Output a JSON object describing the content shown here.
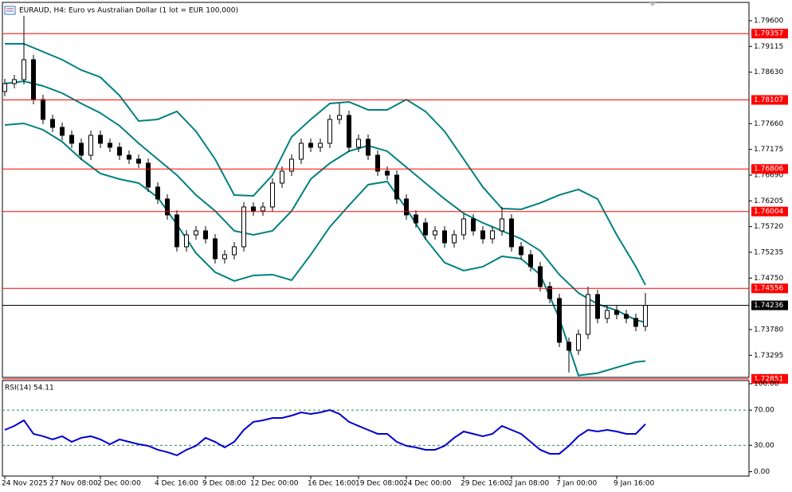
{
  "chart_data": [
    {
      "type": "candlestick",
      "title": "EURAUD, H4:  Euro vs Australian Dollar (1 lot = EUR 100,000)",
      "categories": [
        "24 Nov 2025",
        null,
        null,
        null,
        null,
        "27 Nov 08:00",
        null,
        null,
        null,
        null,
        "2 Dec 00:00",
        null,
        null,
        null,
        null,
        null,
        "4 Dec 16:00",
        null,
        null,
        null,
        null,
        "9 Dec 08:00",
        null,
        null,
        null,
        null,
        "12 Dec 00:00",
        null,
        null,
        null,
        null,
        null,
        "16 Dec 16:00",
        null,
        null,
        null,
        null,
        "19 Dec 08:00",
        null,
        null,
        null,
        null,
        "24 Dec 00:00",
        null,
        null,
        null,
        null,
        null,
        "29 Dec 16:00",
        null,
        null,
        null,
        null,
        "2 Jan 08:00",
        null,
        null,
        null,
        null,
        "7 Jan 00:00",
        null,
        null,
        null,
        null,
        null,
        "9 Jan 16:00",
        null,
        null,
        null
      ],
      "open": [
        1.78265,
        1.78415,
        1.7849,
        1.78865,
        1.78115,
        1.7774,
        1.7759,
        1.7744,
        1.7729,
        1.77065,
        1.7744,
        1.7729,
        1.77215,
        1.77065,
        1.7699,
        1.76915,
        1.76465,
        1.7624,
        1.7594,
        1.7534,
        1.75565,
        1.7564,
        1.7549,
        1.75115,
        1.7519,
        1.7534,
        1.7609,
        1.76015,
        1.7609,
        1.7654,
        1.76765,
        1.7699,
        1.7729,
        1.77215,
        1.7729,
        1.7774,
        1.77815,
        1.77215,
        1.77365,
        1.77065,
        1.76765,
        1.7669,
        1.7624,
        1.7594,
        1.7579,
        1.75565,
        1.7564,
        1.75415,
        1.75565,
        1.75865,
        1.7564,
        1.7549,
        1.7564,
        1.75865,
        1.7534,
        1.7519,
        1.74965,
        1.7459,
        1.74365,
        1.7354,
        1.7339,
        1.7369,
        1.7444,
        1.7399,
        1.7414,
        1.74065,
        1.7399,
        1.7384
      ],
      "high": [
        1.78505,
        1.7858,
        1.7969,
        1.78955,
        1.78205,
        1.7783,
        1.7768,
        1.7753,
        1.7738,
        1.7753,
        1.7753,
        1.7738,
        1.77305,
        1.77155,
        1.7708,
        1.77005,
        1.76555,
        1.7633,
        1.7603,
        1.75655,
        1.7573,
        1.7573,
        1.7558,
        1.7528,
        1.7543,
        1.7618,
        1.7618,
        1.7618,
        1.7663,
        1.76855,
        1.7708,
        1.7738,
        1.7738,
        1.7738,
        1.7783,
        1.7804,
        1.77905,
        1.77455,
        1.77455,
        1.77155,
        1.76855,
        1.7678,
        1.7633,
        1.7603,
        1.7588,
        1.7573,
        1.7573,
        1.75655,
        1.75955,
        1.75955,
        1.7573,
        1.7573,
        1.7609,
        1.75955,
        1.7543,
        1.7528,
        1.75055,
        1.7468,
        1.74455,
        1.7363,
        1.7378,
        1.7459,
        1.7453,
        1.7423,
        1.7423,
        1.74155,
        1.7408,
        1.7447
      ],
      "low": [
        1.78175,
        1.78325,
        1.784,
        1.78025,
        1.7765,
        1.775,
        1.7735,
        1.772,
        1.76975,
        1.76975,
        1.772,
        1.77125,
        1.76975,
        1.769,
        1.76825,
        1.76375,
        1.7615,
        1.7585,
        1.7525,
        1.7525,
        1.75475,
        1.754,
        1.75025,
        1.75025,
        1.751,
        1.7525,
        1.75925,
        1.75925,
        1.76,
        1.7645,
        1.76675,
        1.769,
        1.77125,
        1.77125,
        1.772,
        1.7765,
        1.77125,
        1.77125,
        1.76975,
        1.76675,
        1.766,
        1.7615,
        1.7585,
        1.757,
        1.75475,
        1.75475,
        1.75325,
        1.75325,
        1.75475,
        1.7555,
        1.754,
        1.754,
        1.7555,
        1.7525,
        1.751,
        1.74875,
        1.745,
        1.74275,
        1.7345,
        1.7297,
        1.733,
        1.736,
        1.739,
        1.739,
        1.73975,
        1.739,
        1.7375,
        1.7375
      ],
      "close": [
        1.78415,
        1.7849,
        1.78865,
        1.78115,
        1.7774,
        1.7759,
        1.7744,
        1.7729,
        1.77065,
        1.7744,
        1.7729,
        1.77215,
        1.77065,
        1.7699,
        1.76915,
        1.76465,
        1.7624,
        1.7594,
        1.7534,
        1.75565,
        1.7564,
        1.7549,
        1.75115,
        1.7519,
        1.7534,
        1.7609,
        1.76015,
        1.7609,
        1.7654,
        1.76765,
        1.7699,
        1.7729,
        1.77215,
        1.7729,
        1.7774,
        1.77815,
        1.77215,
        1.77365,
        1.77065,
        1.76765,
        1.7669,
        1.7624,
        1.7594,
        1.7579,
        1.75565,
        1.7564,
        1.75415,
        1.75565,
        1.75865,
        1.7564,
        1.7549,
        1.7564,
        1.75865,
        1.7534,
        1.7519,
        1.74965,
        1.7459,
        1.74365,
        1.7354,
        1.7339,
        1.7369,
        1.7444,
        1.7399,
        1.7414,
        1.74065,
        1.7399,
        1.7384,
        1.74236
      ],
      "candle_color": "#000000",
      "bull_fill": "#ffffff",
      "bear_fill": "#000000",
      "bands": {
        "color": "#008080",
        "x": [
          0,
          2,
          4,
          6,
          8,
          10,
          12,
          14,
          16,
          18,
          20,
          22,
          24,
          26,
          28,
          30,
          32,
          34,
          36,
          38,
          40,
          42,
          44,
          46,
          48,
          50,
          52,
          54,
          56,
          58,
          60,
          62,
          64,
          66,
          67
        ],
        "upper": [
          1.79165,
          1.79165,
          1.79015,
          1.78865,
          1.7867,
          1.78535,
          1.7819,
          1.7771,
          1.7774,
          1.7789,
          1.77515,
          1.7699,
          1.76315,
          1.763,
          1.7669,
          1.7741,
          1.7774,
          1.7804,
          1.7807,
          1.7792,
          1.7792,
          1.78115,
          1.7789,
          1.77515,
          1.7699,
          1.76465,
          1.7606,
          1.76045,
          1.76165,
          1.76315,
          1.7642,
          1.7624,
          1.75565,
          1.74965,
          1.7462
        ],
        "middle": [
          1.78415,
          1.7846,
          1.7837,
          1.78235,
          1.7804,
          1.7786,
          1.7762,
          1.7729,
          1.7699,
          1.7669,
          1.76315,
          1.76015,
          1.7564,
          1.75565,
          1.7564,
          1.76015,
          1.76615,
          1.76915,
          1.7714,
          1.77245,
          1.7714,
          1.7684,
          1.7654,
          1.7624,
          1.7597,
          1.7579,
          1.7564,
          1.7549,
          1.75265,
          1.74815,
          1.7447,
          1.7426,
          1.7414,
          1.7396,
          1.73915
        ],
        "lower": [
          1.77635,
          1.77665,
          1.77545,
          1.7732,
          1.7699,
          1.7672,
          1.76615,
          1.7654,
          1.7627,
          1.7576,
          1.7522,
          1.7486,
          1.74695,
          1.748,
          1.74815,
          1.7471,
          1.7519,
          1.75715,
          1.7612,
          1.7651,
          1.7657,
          1.7606,
          1.7549,
          1.7504,
          1.7489,
          1.74965,
          1.7516,
          1.75115,
          1.74815,
          1.7399,
          1.72915,
          1.7296,
          1.73065,
          1.7317,
          1.73185
        ]
      },
      "levels": [
        {
          "value": 1.79357,
          "label": "1.79357"
        },
        {
          "value": 1.78107,
          "label": "1.78107"
        },
        {
          "value": 1.76806,
          "label": "1.76806"
        },
        {
          "value": 1.76004,
          "label": "1.76004"
        },
        {
          "value": 1.74556,
          "label": "1.74556"
        },
        {
          "value": 1.72851,
          "label": "1.72851"
        }
      ],
      "level_color": "#ff0000",
      "current": {
        "value": 1.74236,
        "label": "1.74236"
      },
      "ylim": [
        1.72879,
        1.79945
      ],
      "yticks": [
        {
          "value": 1.796,
          "label": "1.79600"
        },
        {
          "value": 1.79115,
          "label": "1.79115"
        },
        {
          "value": 1.7863,
          "label": "1.78630"
        },
        {
          "value": 1.7766,
          "label": "1.77660"
        },
        {
          "value": 1.77175,
          "label": "1.77175"
        },
        {
          "value": 1.7669,
          "label": "1.76690"
        },
        {
          "value": 1.76205,
          "label": "1.76205"
        },
        {
          "value": 1.7572,
          "label": "1.75720"
        },
        {
          "value": 1.75235,
          "label": "1.75235"
        },
        {
          "value": 1.7475,
          "label": "1.74750"
        },
        {
          "value": 1.7378,
          "label": "1.73780"
        },
        {
          "value": 1.73295,
          "label": "1.73295"
        }
      ]
    },
    {
      "type": "line",
      "title": "RSI(14) 54.11",
      "color": "#0000cd",
      "values": [
        47.5,
        52.0,
        58.4,
        43.0,
        40.3,
        36.7,
        40.3,
        33.9,
        38.5,
        40.3,
        36.7,
        31.2,
        36.7,
        33.9,
        31.2,
        29.4,
        24.9,
        22.2,
        18.6,
        24.9,
        29.4,
        38.5,
        33.9,
        27.6,
        33.9,
        47.5,
        56.6,
        58.4,
        61.1,
        61.1,
        63.8,
        67.4,
        65.6,
        67.4,
        70.1,
        65.6,
        56.6,
        52.0,
        47.5,
        43.0,
        43.0,
        33.9,
        29.4,
        27.6,
        24.9,
        24.9,
        29.4,
        38.5,
        45.7,
        43.0,
        40.3,
        43.0,
        52.0,
        47.5,
        43.0,
        33.9,
        24.9,
        20.4,
        20.4,
        29.4,
        40.3,
        47.5,
        45.7,
        47.5,
        45.7,
        43.0,
        43.0,
        54.11
      ],
      "levels": [
        70,
        30
      ],
      "level_color": "#2e8b57",
      "ylim": [
        -5,
        100
      ],
      "yticks": [
        {
          "value": 100,
          "label": "100.00"
        },
        {
          "value": 70,
          "label": "70.00"
        },
        {
          "value": 30,
          "label": "30.00"
        },
        {
          "value": 0,
          "label": "0.00"
        }
      ]
    }
  ]
}
